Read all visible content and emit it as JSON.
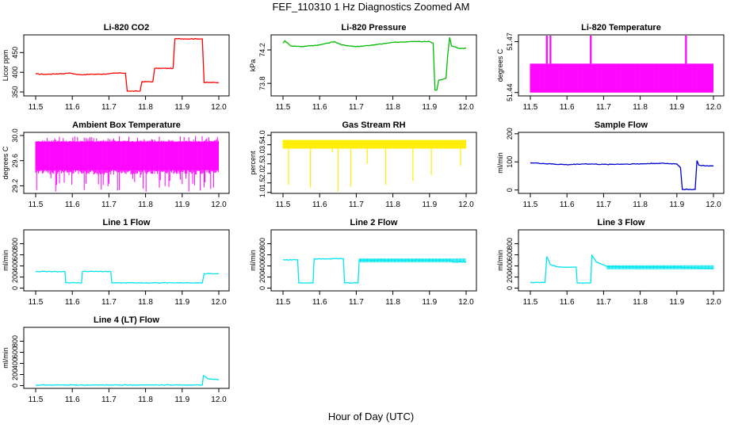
{
  "figure": {
    "title": "FEF_110310  1 Hz Diagnostics Zoomed AM",
    "xlabel": "Hour of Day (UTC)"
  },
  "chart_data": [
    {
      "type": "line",
      "title": "Li-820 CO2",
      "ylabel": "Licor ppm",
      "color": "#ff0000",
      "xlim": [
        11.5,
        12.0
      ],
      "ylim": [
        340,
        495
      ],
      "xticks": [
        "11.5",
        "11.6",
        "11.7",
        "11.8",
        "11.9",
        "12.0"
      ],
      "yticks": [
        "350",
        "400",
        "450"
      ],
      "style": "step",
      "x": [
        11.5,
        11.52,
        11.53,
        11.58,
        11.59,
        11.6,
        11.61,
        11.62,
        11.7,
        11.72,
        11.745,
        11.75,
        11.755,
        11.785,
        11.79,
        11.82,
        11.825,
        11.875,
        11.88,
        11.955,
        11.96,
        12.0
      ],
      "y": [
        396,
        395,
        395,
        397,
        398,
        397,
        395,
        394,
        396,
        398,
        398,
        352,
        352,
        352,
        376,
        376,
        410,
        410,
        485,
        485,
        374,
        374
      ]
    },
    {
      "type": "line",
      "title": "Li-820 Pressure",
      "ylabel": "kPa",
      "color": "#00bb00",
      "xlim": [
        11.5,
        12.0
      ],
      "ylim": [
        73.65,
        74.38
      ],
      "xticks": [
        "11.5",
        "11.6",
        "11.7",
        "11.8",
        "11.9",
        "12.0"
      ],
      "yticks": [
        "73.8",
        "74.2"
      ],
      "x": [
        11.5,
        11.505,
        11.52,
        11.55,
        11.6,
        11.62,
        11.64,
        11.66,
        11.7,
        11.75,
        11.8,
        11.85,
        11.9,
        11.91,
        11.915,
        11.92,
        11.925,
        11.93,
        11.945,
        11.95,
        11.955,
        11.96,
        11.98,
        12.0
      ],
      "y": [
        74.28,
        74.31,
        74.25,
        74.24,
        74.26,
        74.28,
        74.3,
        74.26,
        74.24,
        74.26,
        74.29,
        74.3,
        74.3,
        74.28,
        73.72,
        73.72,
        73.84,
        73.84,
        73.86,
        74.15,
        74.35,
        74.25,
        74.22,
        74.22
      ]
    },
    {
      "type": "line",
      "title": "Li-820 Temperature",
      "ylabel": "degrees C",
      "color": "#ff00ff",
      "xlim": [
        11.5,
        12.0
      ],
      "ylim": [
        51.438,
        51.474
      ],
      "xticks": [
        "11.5",
        "11.6",
        "11.7",
        "11.8",
        "11.9",
        "12.0"
      ],
      "yticks": [
        "51.44",
        "51.47"
      ],
      "style": "band",
      "band": [
        51.44,
        51.457
      ],
      "spikes_x": [
        11.545,
        11.555,
        11.665,
        11.925
      ],
      "spike_top": 51.474
    },
    {
      "type": "line",
      "title": "Ambient Box Temperature",
      "ylabel": "degrees C",
      "color": "#ff00ff",
      "xlim": [
        11.5,
        12.0
      ],
      "ylim": [
        29.08,
        30.05
      ],
      "xticks": [
        "11.5",
        "11.6",
        "11.7",
        "11.8",
        "11.9",
        "12.0"
      ],
      "yticks": [
        "29.2",
        "29.6",
        "30.0"
      ],
      "style": "band",
      "band": [
        29.45,
        29.9
      ],
      "noise_min": 29.1,
      "noise_max": 30.0
    },
    {
      "type": "line",
      "title": "Gas Stream RH",
      "ylabel": "percent",
      "color": "#ffee00",
      "xlim": [
        11.5,
        12.0
      ],
      "ylim": [
        0.95,
        4.15
      ],
      "xticks": [
        "11.5",
        "11.6",
        "11.7",
        "11.8",
        "11.9",
        "12.0"
      ],
      "yticks": [
        "1.0",
        "1.5",
        "2.0",
        "2.5",
        "3.0",
        "3.5",
        "4.0"
      ],
      "style": "band",
      "band": [
        3.3,
        3.75
      ],
      "dips_x": [
        11.515,
        11.575,
        11.635,
        11.65,
        11.685,
        11.73,
        11.78,
        11.855,
        11.905,
        11.985
      ],
      "dips_y": [
        1.4,
        1.25,
        3.1,
        1.05,
        1.3,
        2.5,
        1.4,
        1.6,
        1.9,
        2.4
      ]
    },
    {
      "type": "line",
      "title": "Sample Flow",
      "ylabel": "ml/min",
      "color": "#0000cc",
      "xlim": [
        11.5,
        12.0
      ],
      "ylim": [
        -12,
        205
      ],
      "xticks": [
        "11.5",
        "11.6",
        "11.7",
        "11.8",
        "11.9",
        "12.0"
      ],
      "yticks": [
        "0",
        "100",
        "200"
      ],
      "x": [
        11.5,
        11.55,
        11.6,
        11.65,
        11.7,
        11.75,
        11.8,
        11.85,
        11.9,
        11.91,
        11.915,
        11.95,
        11.955,
        11.96,
        11.98,
        12.0
      ],
      "y": [
        97,
        93,
        90,
        93,
        91,
        92,
        93,
        95,
        93,
        80,
        2,
        2,
        105,
        88,
        86,
        85
      ]
    },
    {
      "type": "line",
      "title": "Line 1 Flow",
      "ylabel": "ml/min",
      "color": "#00e5ee",
      "xlim": [
        11.5,
        12.0
      ],
      "ylim": [
        -50,
        1050
      ],
      "xticks": [
        "11.5",
        "11.6",
        "11.7",
        "11.8",
        "11.9",
        "12.0"
      ],
      "yticks": [
        "0",
        "200",
        "400",
        "600",
        "800"
      ],
      "style": "step",
      "x": [
        11.5,
        11.58,
        11.582,
        11.625,
        11.628,
        11.705,
        11.708,
        11.955,
        11.96,
        12.0
      ],
      "y": [
        300,
        295,
        95,
        95,
        300,
        300,
        95,
        95,
        260,
        260
      ]
    },
    {
      "type": "line",
      "title": "Line 2 Flow",
      "ylabel": "ml/min",
      "color": "#00e5ee",
      "xlim": [
        11.5,
        12.0
      ],
      "ylim": [
        -50,
        1050
      ],
      "xticks": [
        "11.5",
        "11.6",
        "11.7",
        "11.8",
        "11.9",
        "12.0"
      ],
      "yticks": [
        "0",
        "200",
        "400",
        "600",
        "800"
      ],
      "style": "step",
      "x": [
        11.5,
        11.54,
        11.543,
        11.582,
        11.585,
        11.665,
        11.668,
        11.705,
        11.708,
        11.96,
        11.963,
        12.0
      ],
      "y": [
        510,
        510,
        95,
        95,
        530,
        530,
        95,
        95,
        505,
        505,
        470,
        470
      ]
    },
    {
      "type": "line",
      "title": "Line 3 Flow",
      "ylabel": "ml/min",
      "color": "#00e5ee",
      "xlim": [
        11.5,
        12.0
      ],
      "ylim": [
        -50,
        1050
      ],
      "xticks": [
        "11.5",
        "11.6",
        "11.7",
        "11.8",
        "11.9",
        "12.0"
      ],
      "yticks": [
        "0",
        "200",
        "400",
        "600",
        "800"
      ],
      "style": "step",
      "x": [
        11.5,
        11.54,
        11.545,
        11.555,
        11.58,
        11.625,
        11.628,
        11.665,
        11.668,
        11.68,
        11.71,
        11.75,
        11.9,
        12.0
      ],
      "y": [
        100,
        100,
        570,
        420,
        380,
        380,
        95,
        95,
        590,
        470,
        390,
        380,
        380,
        350
      ]
    },
    {
      "type": "line",
      "title": "Line 4 (LT) Flow",
      "ylabel": "ml/min",
      "color": "#00e5ee",
      "xlim": [
        11.5,
        12.0
      ],
      "ylim": [
        -50,
        1050
      ],
      "xticks": [
        "11.5",
        "11.6",
        "11.7",
        "11.8",
        "11.9",
        "12.0"
      ],
      "yticks": [
        "0",
        "200",
        "400",
        "600",
        "800"
      ],
      "x": [
        11.5,
        11.7,
        11.955,
        11.958,
        11.97,
        12.0
      ],
      "y": [
        10,
        10,
        10,
        180,
        120,
        110
      ]
    }
  ]
}
